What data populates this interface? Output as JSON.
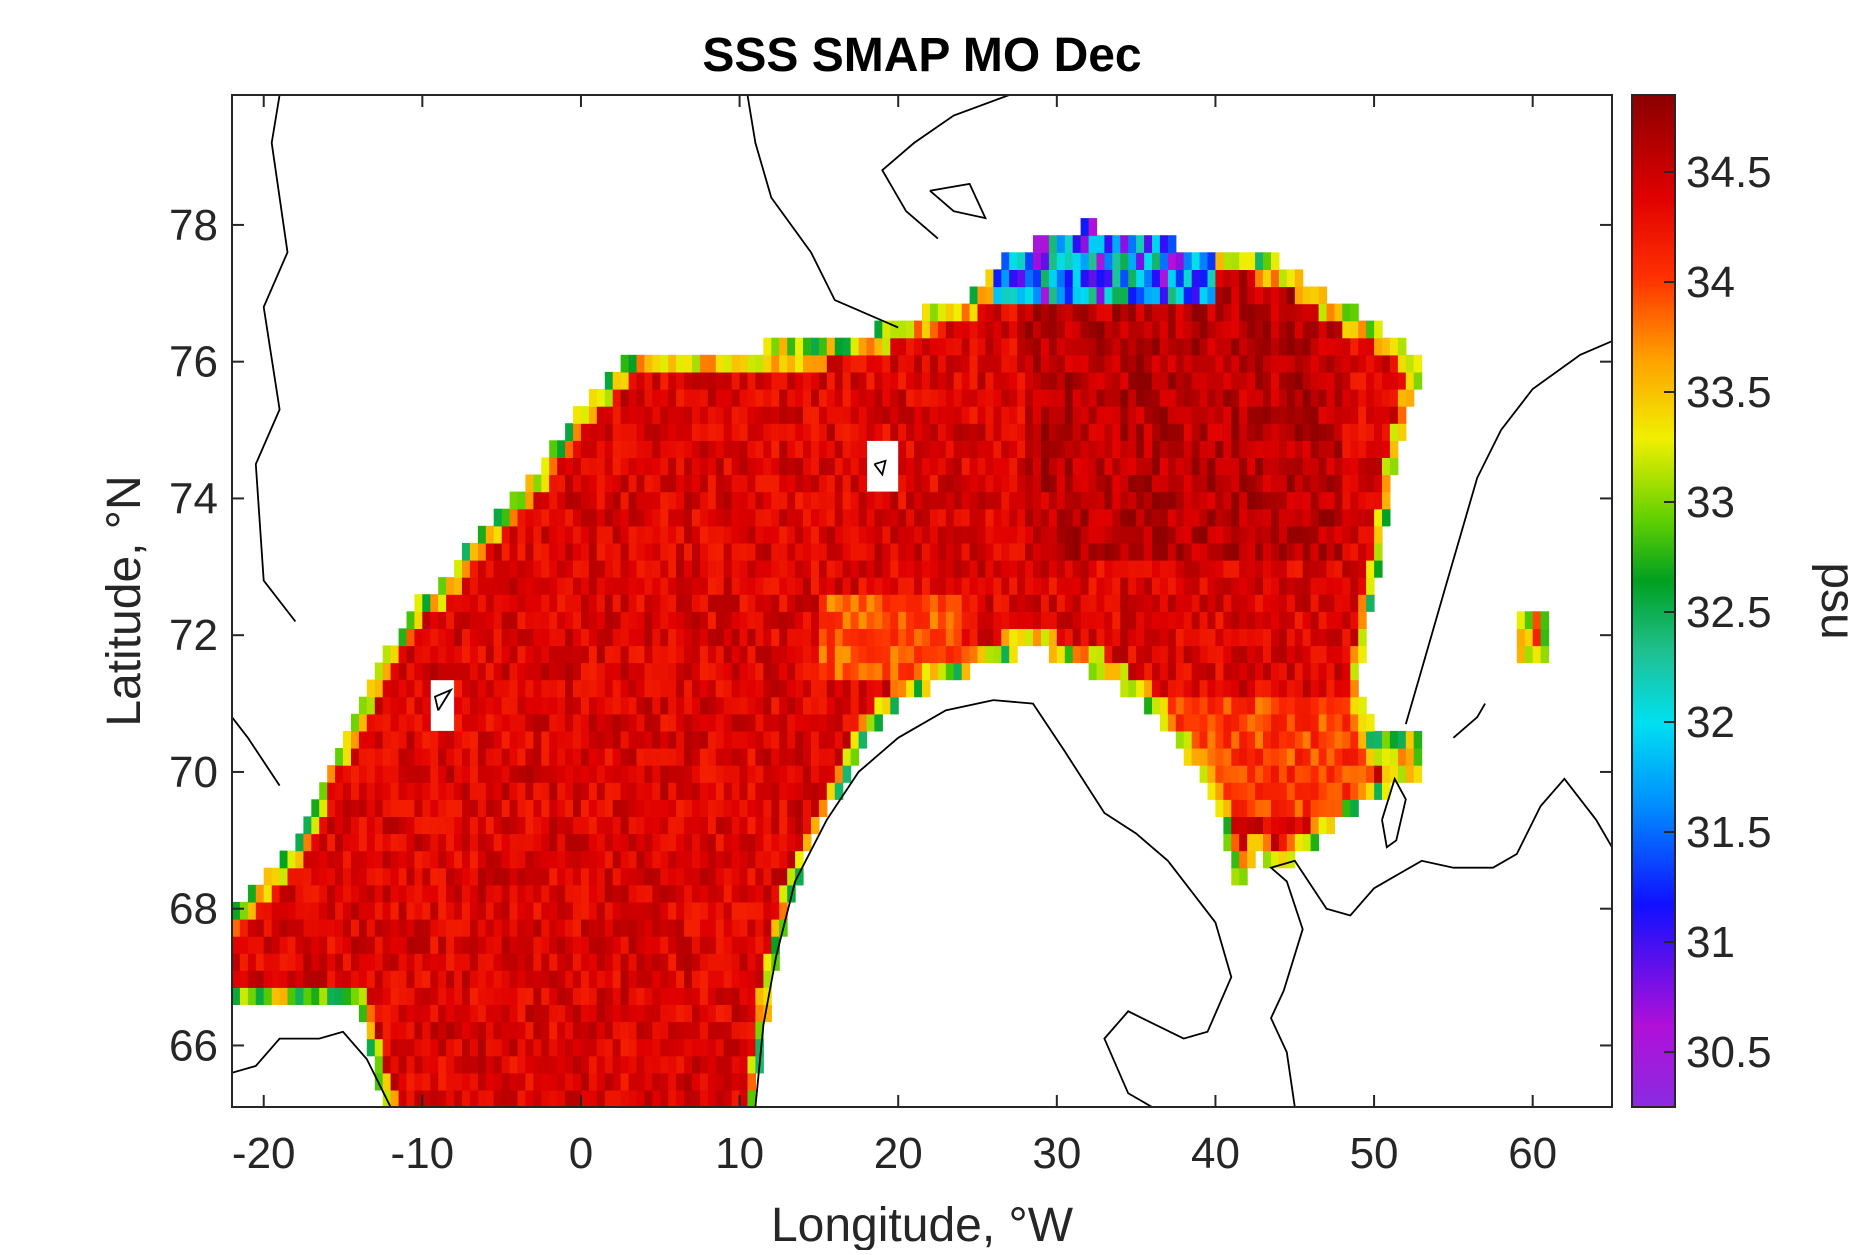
{
  "chart_data": {
    "type": "heatmap",
    "title": "SSS SMAP MO Dec",
    "xlabel": "Longitude, °W",
    "ylabel": "Latitude, °N",
    "colorbar_label": "psu",
    "xlim": [
      -22,
      65
    ],
    "ylim": [
      65.1,
      79.9
    ],
    "xticks": [
      -20,
      -10,
      0,
      10,
      20,
      30,
      40,
      50,
      60
    ],
    "yticks": [
      66,
      68,
      70,
      72,
      74,
      76,
      78
    ],
    "clim": [
      30.25,
      34.85
    ],
    "cticks": [
      30.5,
      31,
      31.5,
      32,
      32.5,
      33,
      33.5,
      34,
      34.5
    ],
    "colormap": "jet-like (purple-blue-cyan-green-yellow-orange-red-darkred)",
    "typical_value": 34.4,
    "coastal_fresh_values": [
      32.0,
      33.0,
      33.5
    ]
  }
}
